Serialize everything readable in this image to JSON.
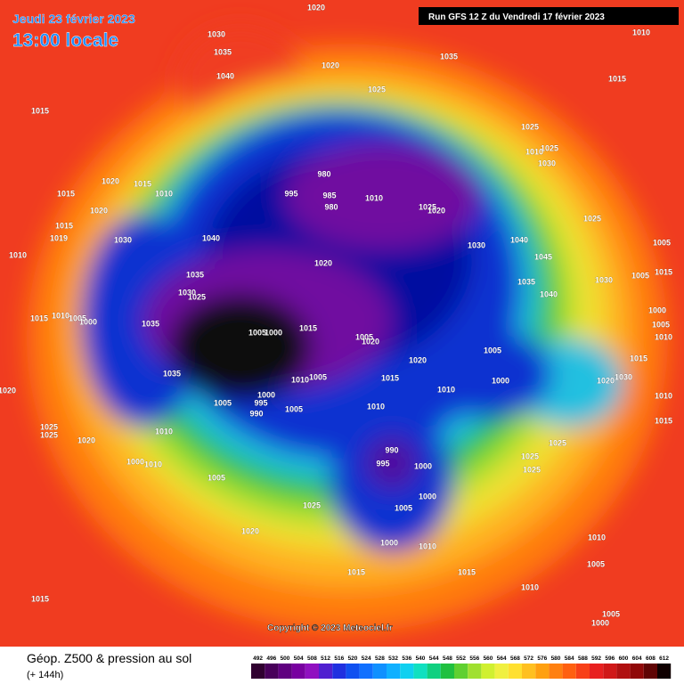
{
  "header": {
    "date": "Jeudi 23 février 2023",
    "time": "13:00 locale",
    "run": "Run GFS 12 Z du Vendredi 17 février 2023"
  },
  "map": {
    "isobar_labels": [
      1020,
      1030,
      1035,
      1040,
      1020,
      1035,
      1010,
      1015,
      1025,
      1015,
      1025,
      1025,
      1030,
      1010,
      1020,
      1015,
      1010,
      1015,
      1020,
      995,
      980,
      985,
      980,
      1010,
      1025,
      1020,
      1025,
      1015,
      1019,
      1030,
      1040,
      1030,
      1040,
      1005,
      1010,
      1020,
      1045,
      1035,
      1035,
      1030,
      1005,
      1015,
      1030,
      1025,
      1040,
      1010,
      1015,
      1005,
      1000,
      1035,
      1005,
      1000,
      1015,
      1005,
      1020,
      1000,
      1005,
      1010,
      1005,
      1015,
      1020,
      1035,
      1015,
      1005,
      1010,
      1000,
      1020,
      1030,
      1020,
      1000,
      995,
      1010,
      1005,
      990,
      1005,
      1010,
      1010,
      1015,
      1025,
      1025,
      1010,
      1020,
      1025,
      1025,
      990,
      995,
      1000,
      1000,
      1010,
      1025,
      1005,
      1000,
      1005,
      1025,
      1020,
      1010,
      1000,
      1010,
      1005,
      1015,
      1015,
      1010,
      1015,
      1005,
      1000
    ]
  },
  "copyright": "Copyright © 2023 Meteociel.fr",
  "footer": {
    "title": "Géop. Z500 & pression au sol",
    "lead": "(+ 144h)"
  },
  "colorbar": {
    "labels": [
      492,
      496,
      500,
      504,
      508,
      512,
      516,
      520,
      524,
      528,
      532,
      536,
      540,
      544,
      548,
      552,
      556,
      560,
      564,
      568,
      572,
      576,
      580,
      584,
      588,
      592,
      596,
      600,
      604,
      608,
      612
    ]
  }
}
